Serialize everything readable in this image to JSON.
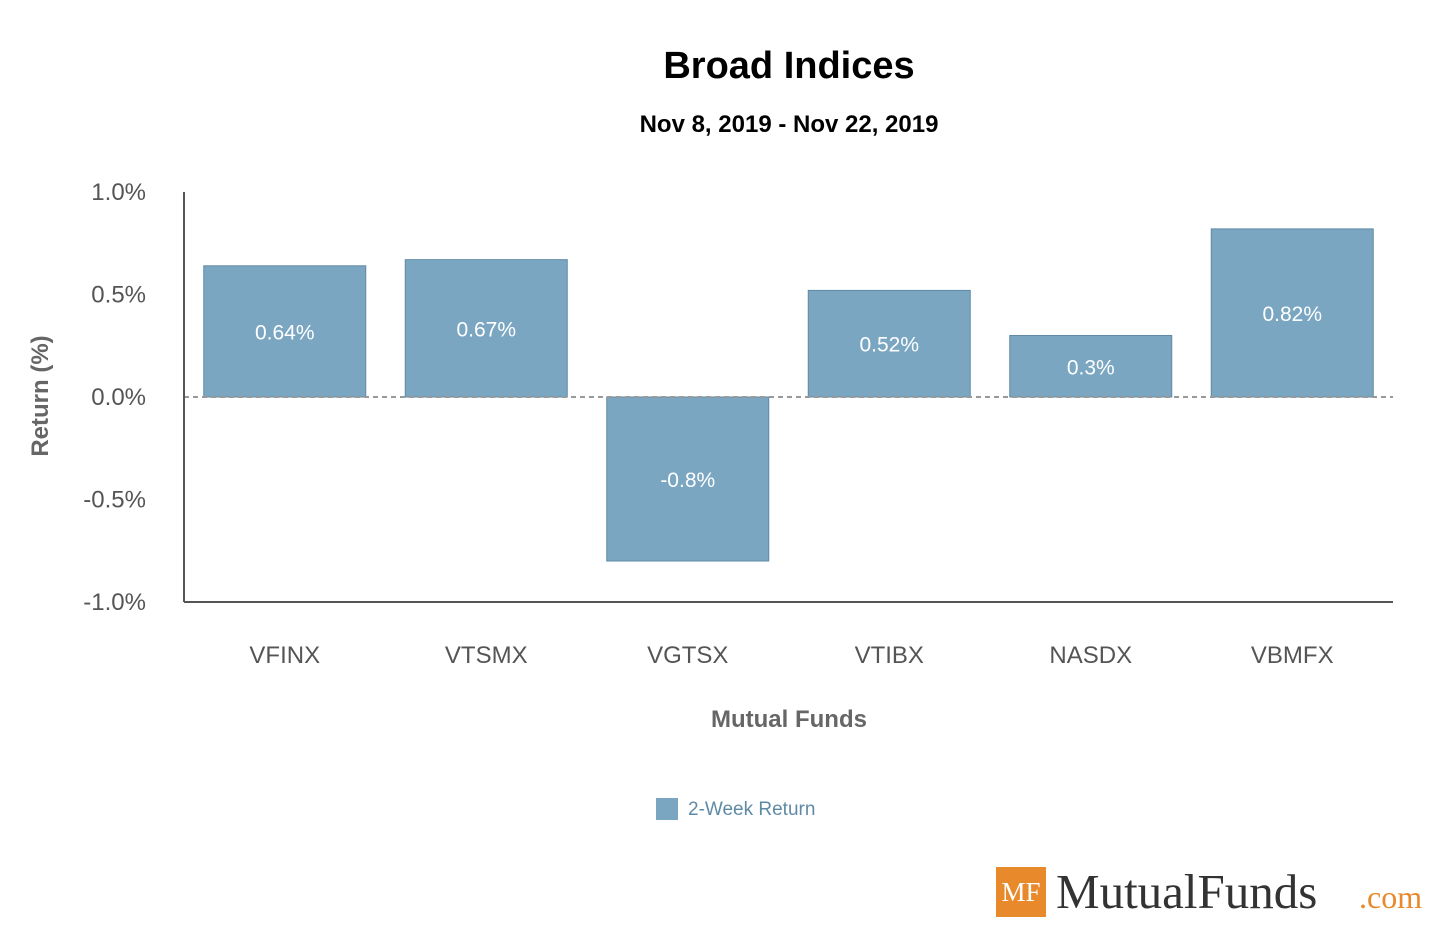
{
  "chart_data": {
    "type": "bar",
    "title": "Broad Indices",
    "subtitle": "Nov 8, 2019 - Nov 22, 2019",
    "xlabel": "Mutual Funds",
    "ylabel": "Return (%)",
    "categories": [
      "VFINX",
      "VTSMX",
      "VGTSX",
      "VTIBX",
      "NASDX",
      "VBMFX"
    ],
    "series": [
      {
        "name": "2-Week Return",
        "values": [
          0.64,
          0.67,
          -0.8,
          0.52,
          0.3,
          0.82
        ],
        "labels": [
          "0.64%",
          "0.67%",
          "-0.8%",
          "0.52%",
          "0.3%",
          "0.82%"
        ],
        "color": "#7aa6c2"
      }
    ],
    "ylim": [
      -1.0,
      1.0
    ],
    "yticks": [
      1.0,
      0.5,
      0.0,
      -0.5,
      -1.0
    ],
    "ytick_labels": [
      "1.0%",
      "0.5%",
      "0.0%",
      "-0.5%",
      "-1.0%"
    ],
    "zero_line": "dashed",
    "grid": false,
    "legend_position": "bottom-center"
  },
  "logo": {
    "badge": "MF",
    "name": "MutualFunds",
    "suffix": ".com",
    "badge_color": "#e8892b",
    "suffix_color": "#e8892b"
  }
}
